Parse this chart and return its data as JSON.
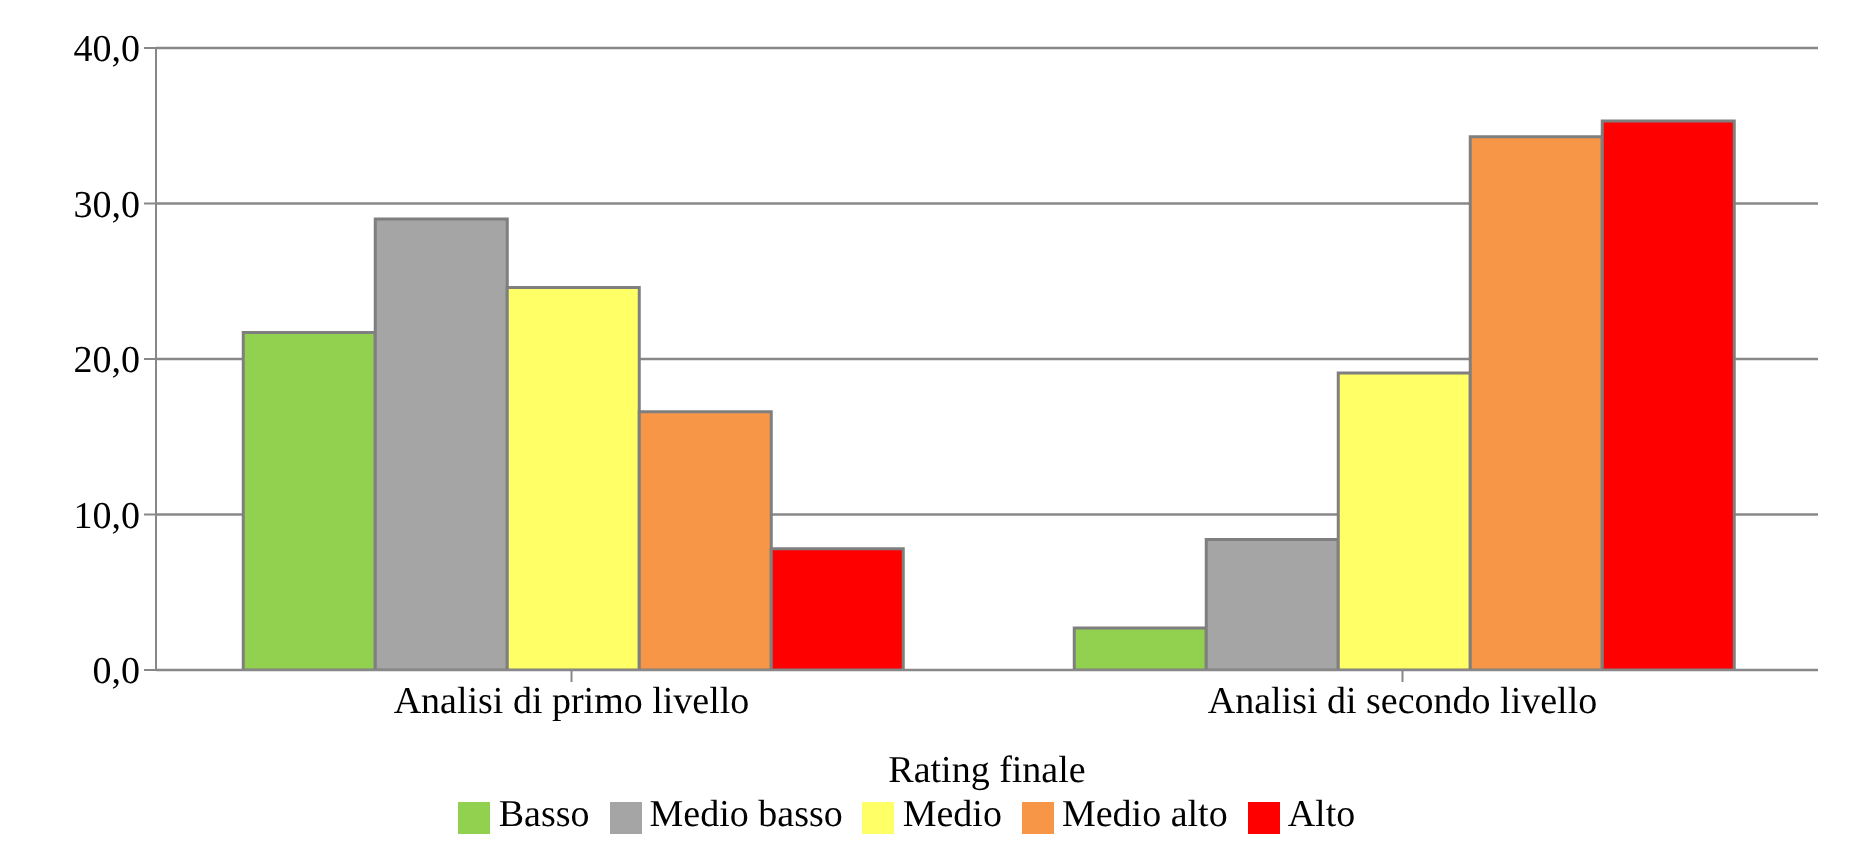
{
  "chart_data": {
    "type": "bar",
    "xlabel": "Rating finale",
    "categories": [
      "Analisi di primo livello",
      "Analisi di secondo livello"
    ],
    "series": [
      {
        "name": "Basso",
        "color": "#92d050",
        "values": [
          21.7,
          2.7
        ]
      },
      {
        "name": "Medio basso",
        "color": "#a5a5a5",
        "values": [
          29.0,
          8.4
        ]
      },
      {
        "name": "Medio",
        "color": "#ffff66",
        "values": [
          24.6,
          19.1
        ]
      },
      {
        "name": "Medio alto",
        "color": "#f79646",
        "values": [
          16.6,
          34.3
        ]
      },
      {
        "name": "Alto",
        "color": "#ff0000",
        "values": [
          7.8,
          35.3
        ]
      }
    ],
    "ylim": [
      0,
      40
    ],
    "yticks": [
      {
        "value": 0,
        "label": "0,0"
      },
      {
        "value": 10,
        "label": "10,0"
      },
      {
        "value": 20,
        "label": "20,0"
      },
      {
        "value": 30,
        "label": "30,0"
      },
      {
        "value": 40,
        "label": "40,0"
      }
    ],
    "grid": "y",
    "legend": "bottom"
  }
}
